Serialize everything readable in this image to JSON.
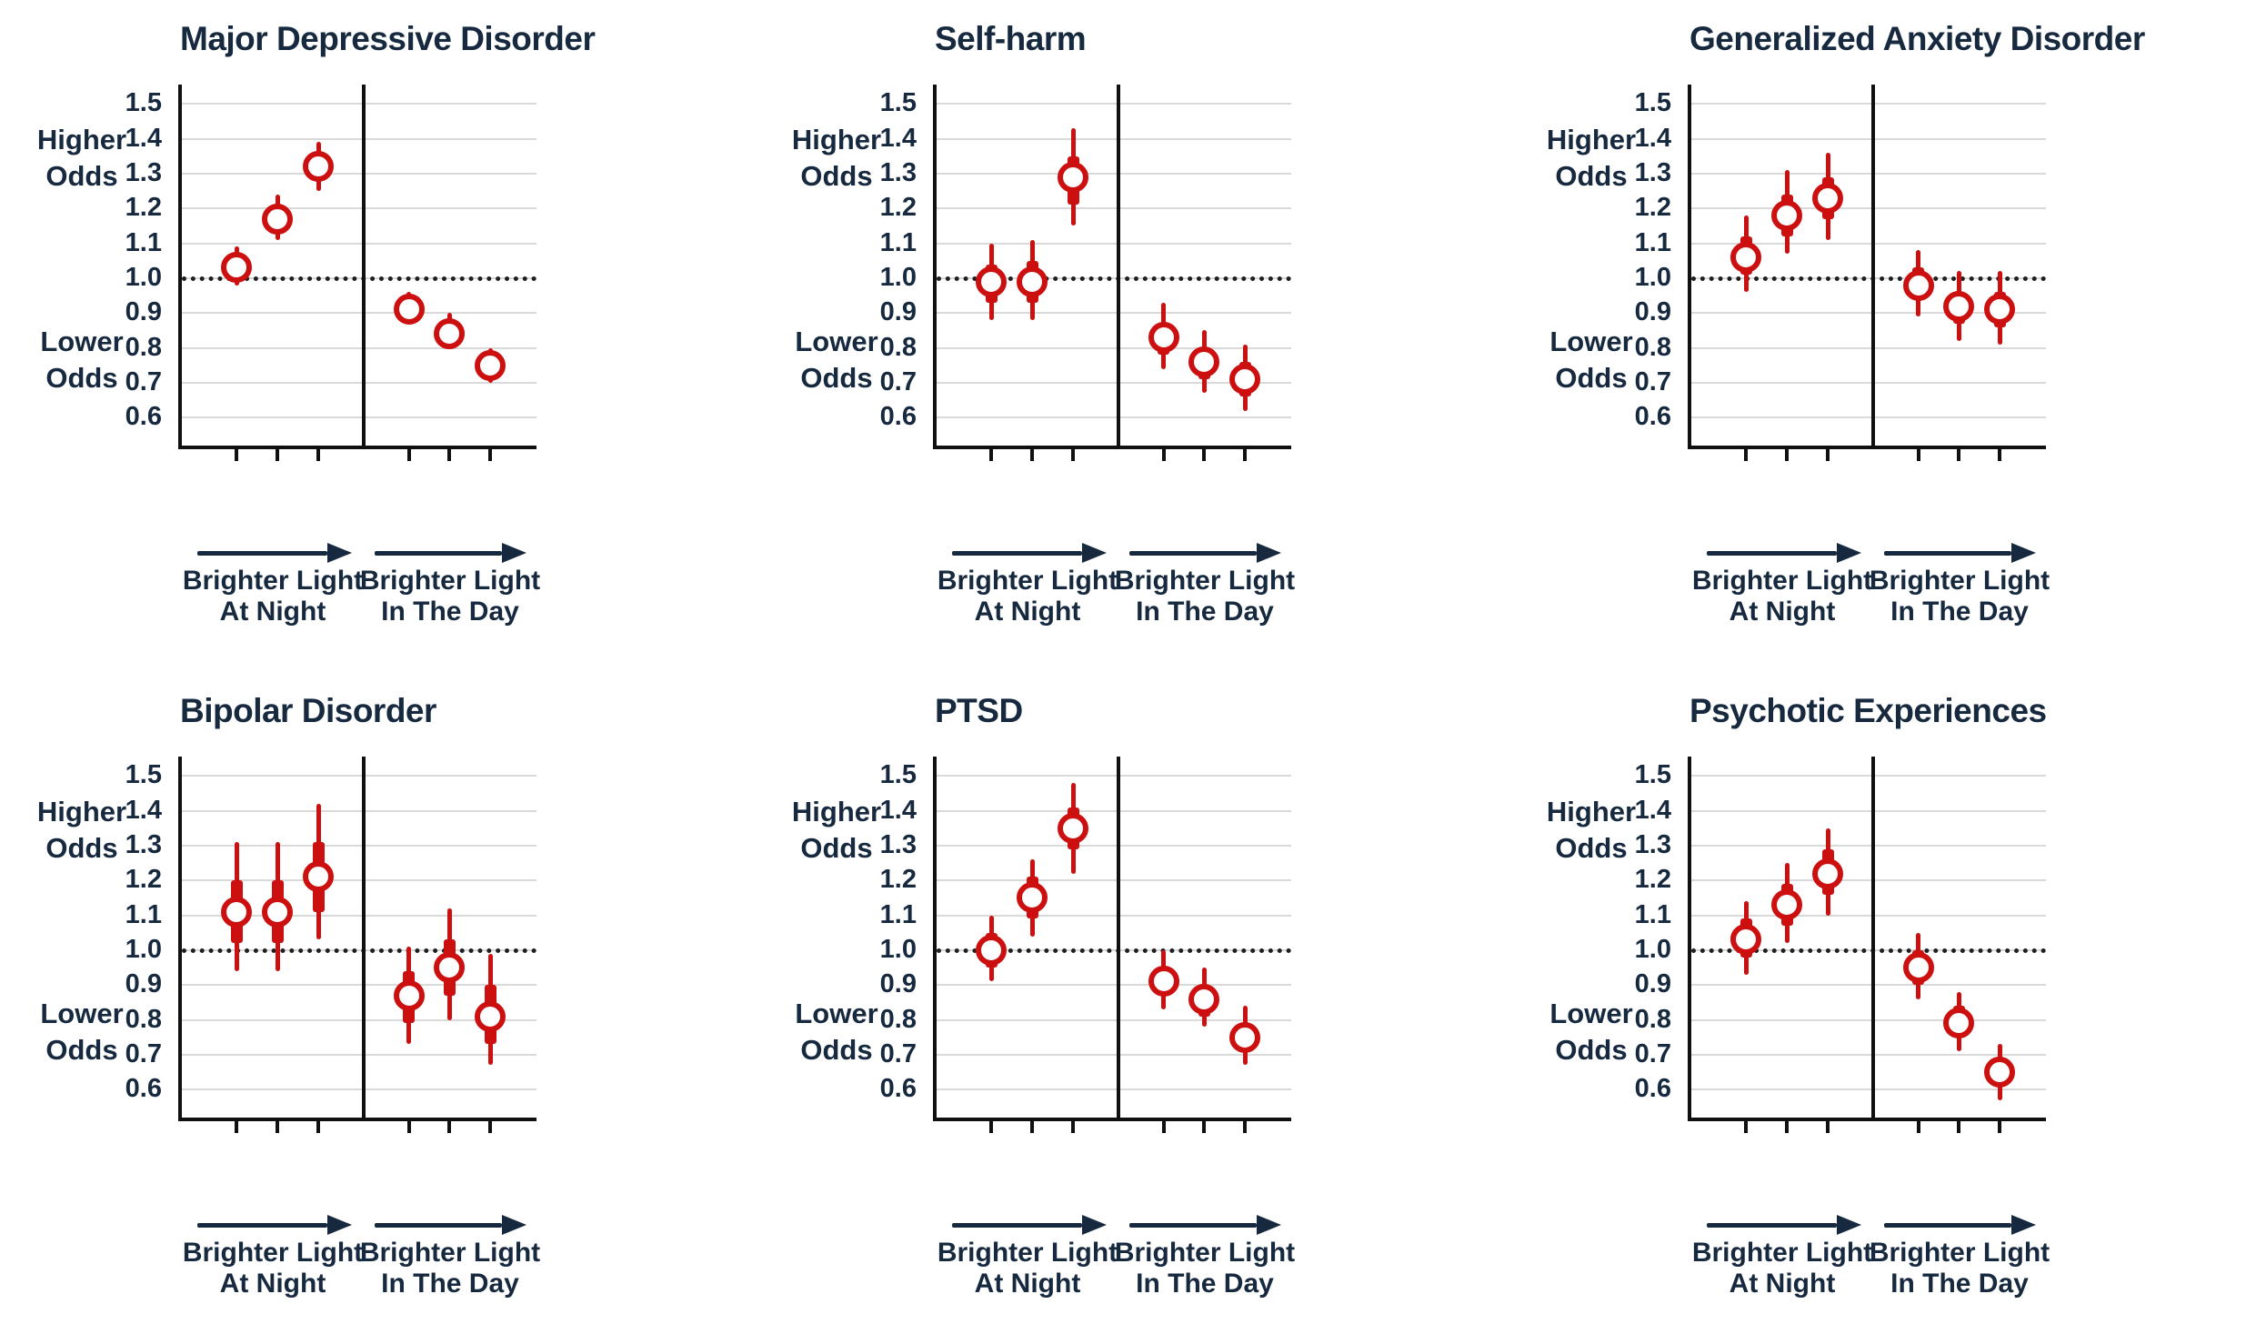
{
  "style": {
    "marker_red": "#cc0f0f",
    "navy_text": "#16293e",
    "grid_gray": "#d9d9d9",
    "axis_black": "#101010",
    "background": "#ffffff"
  },
  "axis_labels": {
    "higher_line1": "Higher",
    "higher_line2": "Odds",
    "lower_line1": "Lower",
    "lower_line2": "Odds"
  },
  "chart_data": [
    {
      "type": "scatter",
      "title": "Major Depressive Disorder",
      "yticks": [
        "1.5",
        "1.4",
        "1.3",
        "1.2",
        "1.1",
        "1.0",
        "0.9",
        "0.8",
        "0.7",
        "0.6"
      ],
      "ylim": [
        0.52,
        1.55
      ],
      "reference_line": 1.0,
      "grid": true,
      "groups": [
        {
          "label_line1": "Brighter Light",
          "label_line2": "At Night",
          "points": [
            {
              "est": 1.03,
              "ci_inner": [
                1.0,
                1.06
              ],
              "ci_outer": [
                0.98,
                1.09
              ]
            },
            {
              "est": 1.17,
              "ci_inner": [
                1.14,
                1.21
              ],
              "ci_outer": [
                1.11,
                1.24
              ]
            },
            {
              "est": 1.32,
              "ci_inner": [
                1.28,
                1.36
              ],
              "ci_outer": [
                1.25,
                1.39
              ]
            }
          ]
        },
        {
          "label_line1": "Brighter Light",
          "label_line2": "In The Day",
          "points": [
            {
              "est": 0.91,
              "ci_inner": [
                0.89,
                0.94
              ],
              "ci_outer": [
                0.87,
                0.96
              ]
            },
            {
              "est": 0.84,
              "ci_inner": [
                0.82,
                0.87
              ],
              "ci_outer": [
                0.8,
                0.9
              ]
            },
            {
              "est": 0.75,
              "ci_inner": [
                0.72,
                0.77
              ],
              "ci_outer": [
                0.7,
                0.8
              ]
            }
          ]
        }
      ]
    },
    {
      "type": "scatter",
      "title": "Self-harm",
      "yticks": [
        "1.5",
        "1.4",
        "1.3",
        "1.2",
        "1.1",
        "1.0",
        "0.9",
        "0.8",
        "0.7",
        "0.6"
      ],
      "ylim": [
        0.52,
        1.55
      ],
      "reference_line": 1.0,
      "grid": true,
      "groups": [
        {
          "label_line1": "Brighter Light",
          "label_line2": "At Night",
          "points": [
            {
              "est": 0.99,
              "ci_inner": [
                0.93,
                1.04
              ],
              "ci_outer": [
                0.88,
                1.1
              ]
            },
            {
              "est": 0.99,
              "ci_inner": [
                0.93,
                1.05
              ],
              "ci_outer": [
                0.88,
                1.11
              ]
            },
            {
              "est": 1.29,
              "ci_inner": [
                1.21,
                1.35
              ],
              "ci_outer": [
                1.15,
                1.43
              ]
            }
          ]
        },
        {
          "label_line1": "Brighter Light",
          "label_line2": "In The Day",
          "points": [
            {
              "est": 0.83,
              "ci_inner": [
                0.78,
                0.87
              ],
              "ci_outer": [
                0.74,
                0.93
              ]
            },
            {
              "est": 0.76,
              "ci_inner": [
                0.71,
                0.8
              ],
              "ci_outer": [
                0.67,
                0.85
              ]
            },
            {
              "est": 0.71,
              "ci_inner": [
                0.66,
                0.76
              ],
              "ci_outer": [
                0.62,
                0.81
              ]
            }
          ]
        }
      ]
    },
    {
      "type": "scatter",
      "title": "Generalized Anxiety Disorder",
      "yticks": [
        "1.5",
        "1.4",
        "1.3",
        "1.2",
        "1.1",
        "1.0",
        "0.9",
        "0.8",
        "0.7",
        "0.6"
      ],
      "ylim": [
        0.52,
        1.55
      ],
      "reference_line": 1.0,
      "grid": true,
      "groups": [
        {
          "label_line1": "Brighter Light",
          "label_line2": "At Night",
          "points": [
            {
              "est": 1.06,
              "ci_inner": [
                1.01,
                1.12
              ],
              "ci_outer": [
                0.96,
                1.18
              ]
            },
            {
              "est": 1.18,
              "ci_inner": [
                1.12,
                1.24
              ],
              "ci_outer": [
                1.07,
                1.31
              ]
            },
            {
              "est": 1.23,
              "ci_inner": [
                1.17,
                1.29
              ],
              "ci_outer": [
                1.11,
                1.36
              ]
            }
          ]
        },
        {
          "label_line1": "Brighter Light",
          "label_line2": "In The Day",
          "points": [
            {
              "est": 0.98,
              "ci_inner": [
                0.94,
                1.03
              ],
              "ci_outer": [
                0.89,
                1.08
              ]
            },
            {
              "est": 0.92,
              "ci_inner": [
                0.87,
                0.96
              ],
              "ci_outer": [
                0.82,
                1.02
              ]
            },
            {
              "est": 0.91,
              "ci_inner": [
                0.86,
                0.96
              ],
              "ci_outer": [
                0.81,
                1.02
              ]
            }
          ]
        }
      ]
    },
    {
      "type": "scatter",
      "title": "Bipolar Disorder",
      "yticks": [
        "1.5",
        "1.4",
        "1.3",
        "1.2",
        "1.1",
        "1.0",
        "0.9",
        "0.8",
        "0.7",
        "0.6"
      ],
      "ylim": [
        0.52,
        1.55
      ],
      "reference_line": 1.0,
      "grid": true,
      "groups": [
        {
          "label_line1": "Brighter Light",
          "label_line2": "At Night",
          "points": [
            {
              "est": 1.11,
              "ci_inner": [
                1.02,
                1.2
              ],
              "ci_outer": [
                0.94,
                1.31
              ]
            },
            {
              "est": 1.11,
              "ci_inner": [
                1.02,
                1.2
              ],
              "ci_outer": [
                0.94,
                1.31
              ]
            },
            {
              "est": 1.21,
              "ci_inner": [
                1.11,
                1.31
              ],
              "ci_outer": [
                1.03,
                1.42
              ]
            }
          ]
        },
        {
          "label_line1": "Brighter Light",
          "label_line2": "In The Day",
          "points": [
            {
              "est": 0.87,
              "ci_inner": [
                0.79,
                0.94
              ],
              "ci_outer": [
                0.73,
                1.01
              ]
            },
            {
              "est": 0.95,
              "ci_inner": [
                0.87,
                1.03
              ],
              "ci_outer": [
                0.8,
                1.12
              ]
            },
            {
              "est": 0.81,
              "ci_inner": [
                0.73,
                0.9
              ],
              "ci_outer": [
                0.67,
                0.99
              ]
            }
          ]
        }
      ]
    },
    {
      "type": "scatter",
      "title": "PTSD",
      "yticks": [
        "1.5",
        "1.4",
        "1.3",
        "1.2",
        "1.1",
        "1.0",
        "0.9",
        "0.8",
        "0.7",
        "0.6"
      ],
      "ylim": [
        0.52,
        1.55
      ],
      "reference_line": 1.0,
      "grid": true,
      "groups": [
        {
          "label_line1": "Brighter Light",
          "label_line2": "At Night",
          "points": [
            {
              "est": 1.0,
              "ci_inner": [
                0.95,
                1.05
              ],
              "ci_outer": [
                0.91,
                1.1
              ]
            },
            {
              "est": 1.15,
              "ci_inner": [
                1.09,
                1.21
              ],
              "ci_outer": [
                1.04,
                1.26
              ]
            },
            {
              "est": 1.35,
              "ci_inner": [
                1.29,
                1.41
              ],
              "ci_outer": [
                1.22,
                1.48
              ]
            }
          ]
        },
        {
          "label_line1": "Brighter Light",
          "label_line2": "In The Day",
          "points": [
            {
              "est": 0.91,
              "ci_inner": [
                0.87,
                0.95
              ],
              "ci_outer": [
                0.83,
                1.0
              ]
            },
            {
              "est": 0.86,
              "ci_inner": [
                0.81,
                0.9
              ],
              "ci_outer": [
                0.78,
                0.95
              ]
            },
            {
              "est": 0.75,
              "ci_inner": [
                0.71,
                0.79
              ],
              "ci_outer": [
                0.67,
                0.84
              ]
            }
          ]
        }
      ]
    },
    {
      "type": "scatter",
      "title": "Psychotic Experiences",
      "yticks": [
        "1.5",
        "1.4",
        "1.3",
        "1.2",
        "1.1",
        "1.0",
        "0.9",
        "0.8",
        "0.7",
        "0.6"
      ],
      "ylim": [
        0.52,
        1.55
      ],
      "reference_line": 1.0,
      "grid": true,
      "groups": [
        {
          "label_line1": "Brighter Light",
          "label_line2": "At Night",
          "points": [
            {
              "est": 1.03,
              "ci_inner": [
                0.98,
                1.09
              ],
              "ci_outer": [
                0.93,
                1.14
              ]
            },
            {
              "est": 1.13,
              "ci_inner": [
                1.07,
                1.19
              ],
              "ci_outer": [
                1.02,
                1.25
              ]
            },
            {
              "est": 1.22,
              "ci_inner": [
                1.16,
                1.29
              ],
              "ci_outer": [
                1.1,
                1.35
              ]
            }
          ]
        },
        {
          "label_line1": "Brighter Light",
          "label_line2": "In The Day",
          "points": [
            {
              "est": 0.95,
              "ci_inner": [
                0.9,
                1.0
              ],
              "ci_outer": [
                0.86,
                1.05
              ]
            },
            {
              "est": 0.79,
              "ci_inner": [
                0.75,
                0.84
              ],
              "ci_outer": [
                0.71,
                0.88
              ]
            },
            {
              "est": 0.65,
              "ci_inner": [
                0.61,
                0.69
              ],
              "ci_outer": [
                0.57,
                0.73
              ]
            }
          ]
        }
      ]
    }
  ]
}
